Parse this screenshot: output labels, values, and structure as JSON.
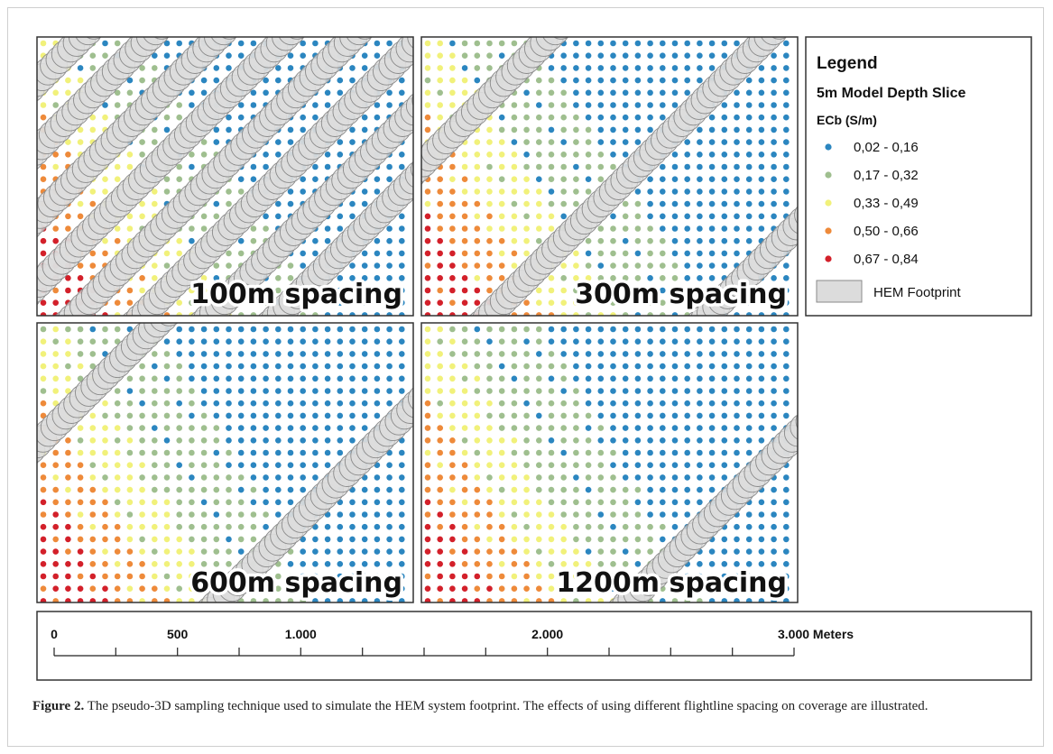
{
  "colors": {
    "class_colors": [
      "#2b86c0",
      "#9fbf8f",
      "#f1f17a",
      "#ee8a3a",
      "#d3202a"
    ],
    "footprint_fill": "#dcdcdc",
    "footprint_stroke": "#8a8a8a"
  },
  "panels": [
    {
      "label": "100m spacing",
      "lines": 8
    },
    {
      "label": "300m spacing",
      "lines": 3
    },
    {
      "label": "600m spacing",
      "lines": 2
    },
    {
      "label": "1200m spacing",
      "lines": 1
    }
  ],
  "legend": {
    "title": "Legend",
    "subtitle": "5m Model Depth Slice",
    "field": "ECb (S/m)",
    "classes": [
      "0,02 - 0,16",
      "0,17 - 0,32",
      "0,33 - 0,49",
      "0,50 - 0,66",
      "0,67 - 0,84"
    ],
    "footprint_label": "HEM Footprint"
  },
  "scale_bar": {
    "labels": [
      "0",
      "500",
      "1.000",
      "2.000",
      "3.000 Meters"
    ],
    "values": [
      0,
      500,
      1000,
      2000,
      3000
    ],
    "tick_values": [
      0,
      250,
      500,
      750,
      1000,
      1250,
      1500,
      1750,
      2000,
      2250,
      2500,
      2750,
      3000
    ],
    "max": 3000
  },
  "caption": {
    "prefix": "Figure 2.",
    "text": " The pseudo-3D sampling technique used to simulate the HEM system footprint. The effects of using different flightline spacing on coverage are illustrated."
  }
}
